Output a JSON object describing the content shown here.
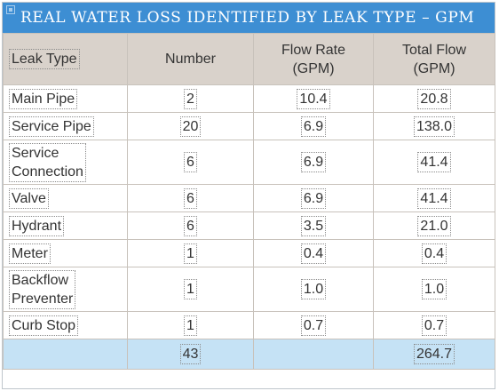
{
  "table": {
    "title": "REAL WATER LOSS IDENTIFIED BY LEAK TYPE – GPM",
    "headers": {
      "leak_type": "Leak Type",
      "number": "Number",
      "flow_rate": [
        "Flow Rate",
        "(GPM)"
      ],
      "total_flow": [
        "Total Flow",
        "(GPM)"
      ]
    },
    "rows": [
      {
        "leak_type": [
          "Main Pipe"
        ],
        "number": "2",
        "flow_rate": "10.4",
        "total_flow": "20.8"
      },
      {
        "leak_type": [
          "Service Pipe"
        ],
        "number": "20",
        "flow_rate": "6.9",
        "total_flow": "138.0"
      },
      {
        "leak_type": [
          "Service",
          "Connection"
        ],
        "number": "6",
        "flow_rate": "6.9",
        "total_flow": "41.4"
      },
      {
        "leak_type": [
          "Valve"
        ],
        "number": "6",
        "flow_rate": "6.9",
        "total_flow": "41.4"
      },
      {
        "leak_type": [
          "Hydrant"
        ],
        "number": "6",
        "flow_rate": "3.5",
        "total_flow": "21.0"
      },
      {
        "leak_type": [
          "Meter"
        ],
        "number": "1",
        "flow_rate": "0.4",
        "total_flow": "0.4"
      },
      {
        "leak_type": [
          "Backflow",
          "Preventer"
        ],
        "number": "1",
        "flow_rate": "1.0",
        "total_flow": "1.0"
      },
      {
        "leak_type": [
          "Curb Stop"
        ],
        "number": "1",
        "flow_rate": "0.7",
        "total_flow": "0.7"
      }
    ],
    "totals": {
      "number": "43",
      "total_flow": "264.7"
    },
    "colors": {
      "title_bar": "#3d8ed3",
      "header_bg": "#d9d2cb",
      "totals_bg": "#c5e2f5"
    }
  }
}
